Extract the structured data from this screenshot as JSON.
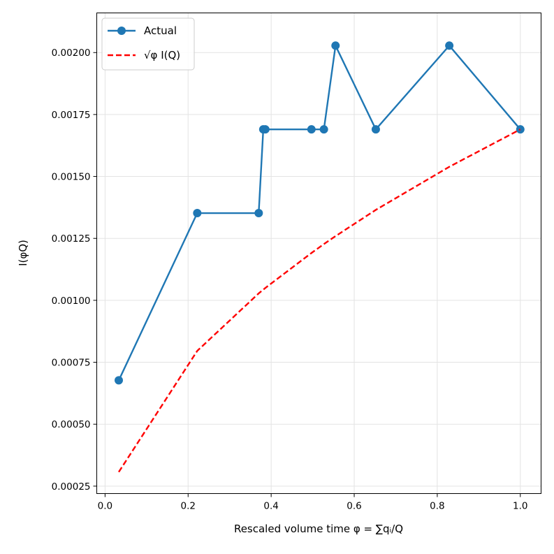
{
  "chart_data": {
    "type": "line",
    "xlabel": "Rescaled volume time φ = ∑qᵢ/Q",
    "ylabel": "I(φQ)",
    "xlim": [
      -0.02,
      1.05
    ],
    "ylim": [
      0.00022,
      0.00216
    ],
    "xticks": [
      0.0,
      0.2,
      0.4,
      0.6,
      0.8,
      1.0
    ],
    "xtick_labels": [
      "0.0",
      "0.2",
      "0.4",
      "0.6",
      "0.8",
      "1.0"
    ],
    "yticks": [
      0.00025,
      0.0005,
      0.00075,
      0.001,
      0.00125,
      0.0015,
      0.00175,
      0.002
    ],
    "ytick_labels": [
      "0.00025",
      "0.00050",
      "0.00075",
      "0.00100",
      "0.00125",
      "0.00150",
      "0.00175",
      "0.00200"
    ],
    "grid": true,
    "legend_position": "top-left",
    "series": [
      {
        "name": "Actual",
        "color": "#1f77b4",
        "style": "solid",
        "markers": true,
        "x": [
          0.033,
          0.222,
          0.37,
          0.381,
          0.386,
          0.497,
          0.527,
          0.555,
          0.652,
          0.829,
          1.0
        ],
        "y": [
          0.000677,
          0.001352,
          0.001352,
          0.00169,
          0.00169,
          0.00169,
          0.00169,
          0.002028,
          0.00169,
          0.002028,
          0.00169
        ]
      },
      {
        "name": "√φ I(Q)",
        "color": "#ff0000",
        "style": "dashed",
        "markers": false,
        "x": [
          0.033,
          0.222,
          0.37,
          0.381,
          0.386,
          0.497,
          0.527,
          0.555,
          0.652,
          0.829,
          1.0
        ],
        "y": [
          0.000307,
          0.000796,
          0.001028,
          0.001043,
          0.00105,
          0.001191,
          0.001227,
          0.001259,
          0.001365,
          0.001539,
          0.00169
        ]
      }
    ]
  }
}
